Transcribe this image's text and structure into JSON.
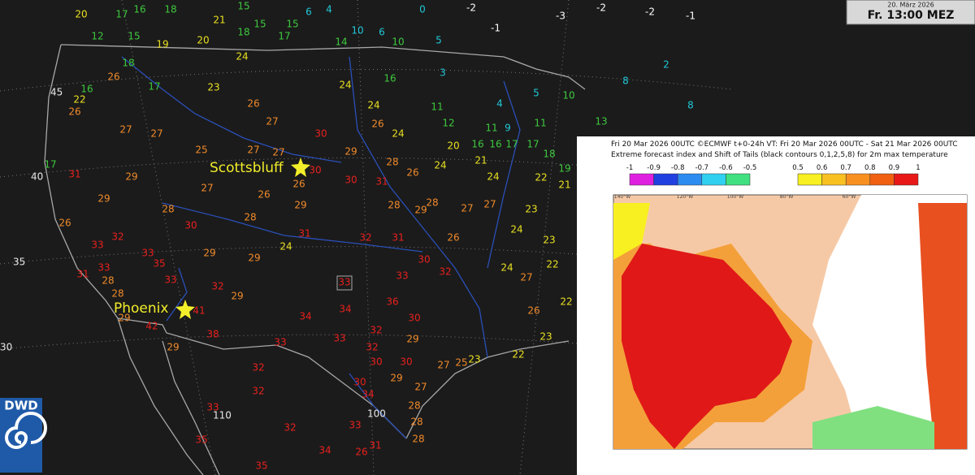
{
  "header": {
    "date": "20. März 2026",
    "time": "Fr. 13:00 MEZ"
  },
  "logo": "DWD",
  "cities": [
    "Scottsbluff",
    "Phoenix"
  ],
  "grid_labels": {
    "lat": [
      "45",
      "40",
      "35",
      "30"
    ],
    "lon": [
      "110",
      "100"
    ]
  },
  "stations": {
    "values": [
      20,
      17,
      16,
      18,
      21,
      15,
      15,
      15,
      6,
      4,
      10,
      6,
      0,
      -2,
      -1,
      -3,
      -2,
      -2,
      -1,
      12,
      15,
      19,
      20,
      18,
      17,
      14,
      10,
      5,
      18,
      24,
      24,
      16,
      3,
      4,
      5,
      10,
      13,
      8,
      2,
      8,
      16,
      22,
      26,
      26,
      17,
      23,
      26,
      27,
      30,
      24,
      26,
      24,
      11,
      12,
      11,
      9,
      11,
      27,
      27,
      25,
      27,
      27,
      29,
      20,
      16,
      16,
      17,
      17,
      18,
      17,
      31,
      29,
      27,
      26,
      26,
      30,
      30,
      31,
      28,
      26,
      24,
      21,
      24,
      22,
      19,
      21,
      29,
      28,
      28,
      29,
      28,
      29,
      28,
      27,
      27,
      23,
      26,
      30,
      32,
      31,
      32,
      31,
      26,
      24,
      23,
      33,
      33,
      29,
      29,
      24,
      30,
      32,
      24,
      27,
      22,
      33,
      35,
      31,
      28,
      33,
      32,
      29,
      33,
      33,
      36,
      28,
      41,
      34,
      34,
      30,
      26,
      22,
      29,
      42,
      38,
      33,
      32,
      29,
      23,
      29,
      33,
      32,
      22,
      32,
      30,
      30,
      27,
      25,
      23,
      30,
      29,
      27,
      32,
      34,
      28,
      33,
      28,
      32,
      33,
      35,
      31,
      28,
      34,
      26,
      35
    ],
    "colors": [
      "#e8e020",
      "#3ec83e",
      "#3ec83e",
      "#3ec83e",
      "#e8e020",
      "#3ec83e",
      "#3ec83e",
      "#3ec83e",
      "#20c8d8",
      "#20c8d8",
      "#20c8d8",
      "#20c8d8",
      "#20c8d8",
      "#ffffff",
      "#ffffff",
      "#ffffff",
      "#ffffff",
      "#ffffff",
      "#ffffff",
      "#3ec83e",
      "#3ec83e",
      "#e8e020",
      "#e8e020",
      "#3ec83e",
      "#3ec83e",
      "#3ec83e",
      "#3ec83e",
      "#20c8d8",
      "#3ec83e",
      "#e8e020",
      "#e8e020",
      "#3ec83e",
      "#20c8d8",
      "#20c8d8",
      "#20c8d8",
      "#3ec83e",
      "#3ec83e",
      "#20c8d8",
      "#20c8d8",
      "#20c8d8",
      "#3ec83e",
      "#e8e020",
      "#f08a2a",
      "#f08a2a",
      "#3ec83e",
      "#e8e020",
      "#f08a2a",
      "#f08a2a",
      "#e8201e",
      "#e8e020",
      "#f08a2a",
      "#e8e020",
      "#3ec83e",
      "#3ec83e",
      "#3ec83e",
      "#20c8d8",
      "#3ec83e",
      "#f08a2a",
      "#f08a2a",
      "#f08a2a",
      "#f08a2a",
      "#f08a2a",
      "#f08a2a",
      "#e8e020",
      "#3ec83e",
      "#3ec83e",
      "#3ec83e",
      "#3ec83e",
      "#3ec83e",
      "#3ec83e",
      "#e8201e",
      "#f08a2a",
      "#f08a2a",
      "#f08a2a",
      "#f08a2a",
      "#e8201e",
      "#e8201e",
      "#e8201e",
      "#f08a2a",
      "#f08a2a",
      "#e8e020",
      "#e8e020",
      "#e8e020",
      "#e8e020",
      "#3ec83e",
      "#e8e020",
      "#f08a2a",
      "#f08a2a",
      "#f08a2a",
      "#f08a2a",
      "#f08a2a",
      "#f08a2a",
      "#f08a2a",
      "#f08a2a",
      "#f08a2a",
      "#e8e020",
      "#f08a2a",
      "#e8201e",
      "#e8201e",
      "#e8201e",
      "#e8201e",
      "#e8201e",
      "#f08a2a",
      "#e8e020",
      "#e8e020",
      "#e8201e",
      "#e8201e",
      "#f08a2a",
      "#f08a2a",
      "#e8e020",
      "#e8201e",
      "#e8201e",
      "#e8e020",
      "#f08a2a",
      "#e8e020",
      "#e8201e",
      "#e8201e",
      "#e8201e",
      "#f08a2a",
      "#e8201e",
      "#e8201e",
      "#f08a2a",
      "#e8201e",
      "#e8201e",
      "#e8201e",
      "#f08a2a",
      "#e8201e",
      "#e8201e",
      "#e8201e",
      "#e8201e",
      "#f08a2a",
      "#e8e020",
      "#f08a2a",
      "#e8201e",
      "#e8201e",
      "#e8201e",
      "#e8201e",
      "#f08a2a",
      "#e8e020",
      "#f08a2a",
      "#e8201e",
      "#e8201e",
      "#e8e020",
      "#e8201e",
      "#e8201e",
      "#e8201e",
      "#f08a2a",
      "#f08a2a",
      "#e8e020",
      "#e8201e",
      "#f08a2a",
      "#f08a2a",
      "#e8201e",
      "#e8201e",
      "#f08a2a",
      "#e8201e",
      "#f08a2a",
      "#e8201e",
      "#e8201e",
      "#e8201e",
      "#e8201e",
      "#f08a2a",
      "#e8201e",
      "#e8201e",
      "#e8201e"
    ]
  },
  "inset": {
    "title_line1": "Fri 20 Mar 2026 00UTC ©ECMWF t+0-24h  VT: Fri 20 Mar 2026 00UTC - Sat 21 Mar 2026 00UTC",
    "title_line2": "Extreme forecast index and Shift of Tails (black contours 0,1,2,5,8) for 2m max temperature",
    "colorbar_negative": {
      "labels": [
        "-1",
        "-0.9",
        "-0.8",
        "-0.7",
        "-0.6",
        "-0.5"
      ],
      "colors": [
        "#e020e0",
        "#2040e0",
        "#2c8cf0",
        "#30d0f0",
        "#40e080"
      ]
    },
    "colorbar_positive": {
      "labels": [
        "0.5",
        "0.6",
        "0.7",
        "0.8",
        "0.9",
        "1"
      ],
      "colors": [
        "#f8f020",
        "#f8c020",
        "#f89020",
        "#f06010",
        "#e81818"
      ]
    },
    "lon_labels": [
      "140°W",
      "120°W",
      "100°W",
      "80°W",
      "60°W"
    ]
  }
}
